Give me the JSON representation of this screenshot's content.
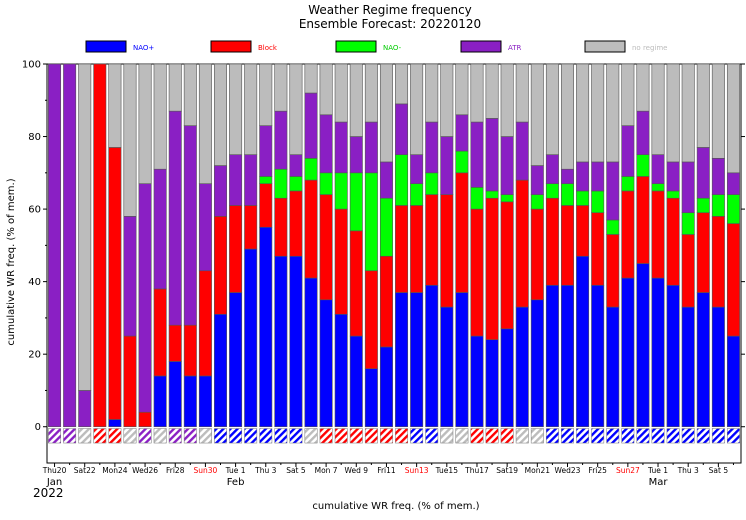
{
  "chart_data": {
    "type": "bar",
    "stacked": true,
    "title": "Weather Regime frequency",
    "subtitle": "Ensemble Forecast: 20220120",
    "ylabel": "cumulative WR freq. (% of mem.)",
    "xlabel": "cumulative WR freq. (% of mem.)",
    "ylim": [
      -10,
      100
    ],
    "yticks": [
      0,
      20,
      40,
      60,
      80,
      100
    ],
    "legend_position": "top",
    "series": [
      {
        "name": "NAO+",
        "color": "#0000ff",
        "values": [
          0,
          0,
          0,
          0,
          2,
          0,
          0,
          14,
          18,
          14,
          14,
          31,
          37,
          49,
          55,
          47,
          47,
          41,
          35,
          31,
          25,
          16,
          22,
          37,
          37,
          39,
          33,
          37,
          25,
          24,
          27,
          33,
          35,
          39,
          39,
          47,
          39,
          33,
          41,
          45,
          41,
          39,
          33,
          37,
          33,
          25
        ]
      },
      {
        "name": "Block",
        "color": "#ff0000",
        "values": [
          0,
          0,
          0,
          100,
          75,
          25,
          4,
          24,
          10,
          14,
          29,
          27,
          24,
          12,
          12,
          16,
          18,
          27,
          29,
          29,
          29,
          27,
          25,
          24,
          24,
          25,
          31,
          33,
          35,
          39,
          35,
          35,
          25,
          24,
          22,
          14,
          20,
          20,
          24,
          24,
          24,
          24,
          20,
          22,
          25,
          31
        ]
      },
      {
        "name": "NAO-",
        "color": "#00ff00",
        "values": [
          0,
          0,
          0,
          0,
          0,
          0,
          0,
          0,
          0,
          0,
          0,
          0,
          0,
          0,
          2,
          8,
          4,
          6,
          6,
          10,
          16,
          27,
          16,
          14,
          6,
          6,
          0,
          6,
          6,
          2,
          2,
          0,
          4,
          4,
          6,
          4,
          6,
          4,
          4,
          6,
          2,
          2,
          6,
          4,
          6,
          8
        ]
      },
      {
        "name": "ATR",
        "color": "#8a1fc4",
        "values": [
          100,
          100,
          10,
          0,
          0,
          33,
          63,
          33,
          59,
          55,
          24,
          14,
          14,
          14,
          14,
          16,
          6,
          18,
          16,
          14,
          10,
          14,
          10,
          14,
          8,
          14,
          16,
          10,
          18,
          20,
          16,
          16,
          8,
          8,
          4,
          8,
          8,
          16,
          14,
          12,
          8,
          8,
          14,
          14,
          10,
          6
        ]
      },
      {
        "name": "no regime",
        "color": "#bcbcbc",
        "values": [
          0,
          0,
          90,
          0,
          23,
          42,
          33,
          29,
          13,
          17,
          33,
          28,
          25,
          25,
          17,
          13,
          25,
          8,
          14,
          16,
          20,
          16,
          27,
          11,
          25,
          16,
          20,
          14,
          16,
          15,
          20,
          16,
          28,
          25,
          29,
          27,
          27,
          27,
          17,
          13,
          25,
          27,
          27,
          23,
          26,
          30
        ]
      }
    ],
    "category_regimes": [
      "ATR",
      "ATR",
      "no regime",
      "Block",
      "Block",
      "no regime",
      "ATR",
      "no regime",
      "ATR",
      "ATR",
      "no regime",
      "NAO+",
      "NAO+",
      "NAO+",
      "NAO+",
      "NAO+",
      "NAO+",
      "no regime",
      "Block",
      "Block",
      "Block",
      "Block",
      "Block",
      "Block",
      "NAO+",
      "NAO+",
      "no regime",
      "no regime",
      "Block",
      "Block",
      "Block",
      "no regime",
      "no regime",
      "NAO+",
      "NAO+",
      "NAO+",
      "NAO+",
      "NAO+",
      "NAO+",
      "NAO+",
      "NAO+",
      "NAO+",
      "NAO+",
      "NAO+",
      "NAO+",
      "NAO+"
    ],
    "x_ticks": [
      {
        "index": 0,
        "label": "Thu20",
        "red": false
      },
      {
        "index": 2,
        "label": "Sat22",
        "red": false
      },
      {
        "index": 4,
        "label": "Mon24",
        "red": false
      },
      {
        "index": 6,
        "label": "Wed26",
        "red": false
      },
      {
        "index": 8,
        "label": "Fri28",
        "red": false
      },
      {
        "index": 10,
        "label": "Sun30",
        "red": true
      },
      {
        "index": 12,
        "label": "Tue 1",
        "red": false
      },
      {
        "index": 14,
        "label": "Thu 3",
        "red": false
      },
      {
        "index": 16,
        "label": "Sat 5",
        "red": false
      },
      {
        "index": 18,
        "label": "Mon 7",
        "red": false
      },
      {
        "index": 20,
        "label": "Wed 9",
        "red": false
      },
      {
        "index": 22,
        "label": "Fri11",
        "red": false
      },
      {
        "index": 24,
        "label": "Sun13",
        "red": true
      },
      {
        "index": 26,
        "label": "Tue15",
        "red": false
      },
      {
        "index": 28,
        "label": "Thu17",
        "red": false
      },
      {
        "index": 30,
        "label": "Sat19",
        "red": false
      },
      {
        "index": 32,
        "label": "Mon21",
        "red": false
      },
      {
        "index": 34,
        "label": "Wed23",
        "red": false
      },
      {
        "index": 36,
        "label": "Fri25",
        "red": false
      },
      {
        "index": 38,
        "label": "Sun27",
        "red": true
      },
      {
        "index": 40,
        "label": "Tue 1",
        "red": false
      },
      {
        "index": 42,
        "label": "Thu 3",
        "red": false
      },
      {
        "index": 44,
        "label": "Sat 5",
        "red": false
      }
    ],
    "month_labels": [
      {
        "index": 0,
        "label": "Jan"
      },
      {
        "index": 12,
        "label": "Feb"
      },
      {
        "index": 40,
        "label": "Mar"
      }
    ],
    "year_label": "2022"
  }
}
